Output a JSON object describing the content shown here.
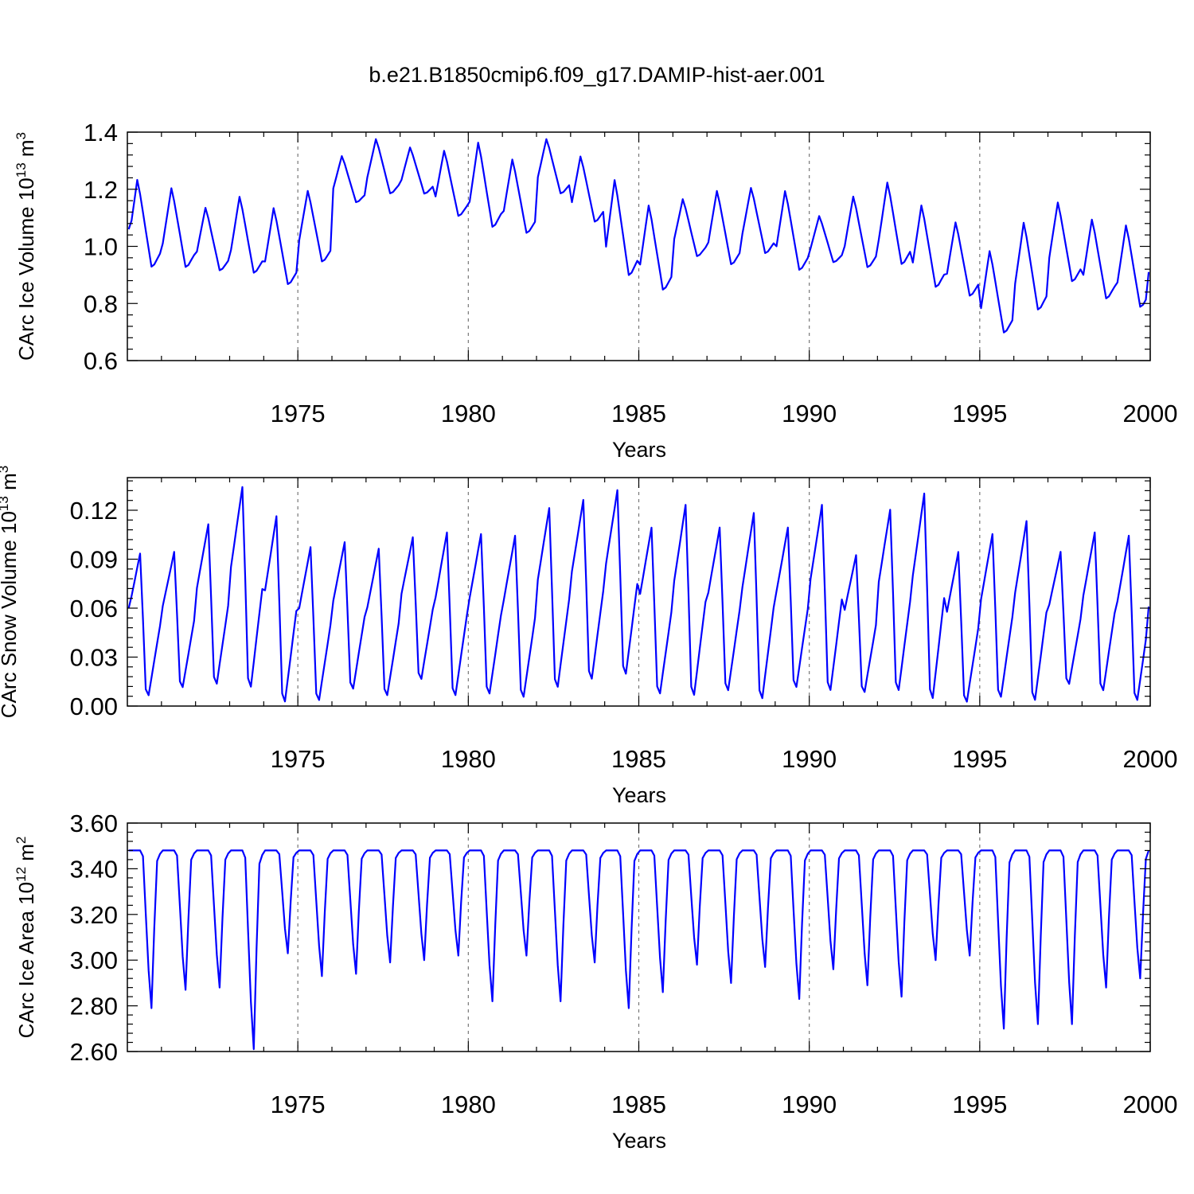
{
  "title": "b.e21.B1850cmip6.f09_g17.DAMIP-hist-aer.001",
  "series_color": "#0000ff",
  "chart_data": [
    {
      "type": "line",
      "id": "ice-volume",
      "ylabel": "CArc Ice Volume 10",
      "ylabel_exp": "13",
      "ylabel_unit": " m",
      "ylabel_unit_exp": "3",
      "xlabel": "Years",
      "xlim": [
        1970,
        2000
      ],
      "ylim": [
        0.6,
        1.4
      ],
      "yticks": [
        0.6,
        0.8,
        1.0,
        1.2,
        1.4
      ],
      "ytick_labels": [
        "0.6",
        "0.8",
        "1.0",
        "1.2",
        "1.4"
      ],
      "xticks": [
        1975,
        1980,
        1985,
        1990,
        1995,
        2000
      ],
      "xtick_labels": [
        "1975",
        "1980",
        "1985",
        "1990",
        "1995",
        "2000"
      ],
      "x_start": 1970.04,
      "x_step": 0.08333,
      "annual_max": [
        1.24,
        1.21,
        1.14,
        1.18,
        1.14,
        1.2,
        1.32,
        1.38,
        1.35,
        1.34,
        1.37,
        1.31,
        1.38,
        1.32,
        1.24,
        1.15,
        1.17,
        1.2,
        1.21,
        1.2,
        1.11,
        1.18,
        1.23,
        1.15,
        1.09,
        0.99,
        1.09,
        1.16,
        1.1,
        1.08
      ],
      "annual_min": [
        0.92,
        0.92,
        0.91,
        0.9,
        0.86,
        0.94,
        1.15,
        1.18,
        1.18,
        1.1,
        1.06,
        1.04,
        1.18,
        1.08,
        0.89,
        0.84,
        0.96,
        0.93,
        0.97,
        0.91,
        0.94,
        0.92,
        0.93,
        0.85,
        0.82,
        0.69,
        0.77,
        0.87,
        0.81,
        0.78
      ],
      "start_value": 1.06,
      "end_value": 0.91
    },
    {
      "type": "line",
      "id": "snow-volume",
      "ylabel": "CArc Snow Volume 10",
      "ylabel_exp": "13",
      "ylabel_unit": " m",
      "ylabel_unit_exp": "3",
      "xlabel": "Years",
      "xlim": [
        1970,
        2000
      ],
      "ylim": [
        0.0,
        0.14
      ],
      "yticks": [
        0.0,
        0.03,
        0.06,
        0.09,
        0.12
      ],
      "ytick_labels": [
        "0.00",
        "0.03",
        "0.06",
        "0.09",
        "0.12"
      ],
      "xticks": [
        1975,
        1980,
        1985,
        1990,
        1995,
        2000
      ],
      "xtick_labels": [
        "1975",
        "1980",
        "1985",
        "1990",
        "1995",
        "2000"
      ],
      "x_start": 1970.04,
      "x_step": 0.08333,
      "annual_max": [
        0.094,
        0.095,
        0.112,
        0.135,
        0.117,
        0.098,
        0.101,
        0.097,
        0.104,
        0.107,
        0.106,
        0.105,
        0.122,
        0.127,
        0.133,
        0.11,
        0.124,
        0.11,
        0.119,
        0.11,
        0.124,
        0.093,
        0.121,
        0.131,
        0.095,
        0.106,
        0.114,
        0.095,
        0.107,
        0.105
      ],
      "annual_min": [
        0.006,
        0.011,
        0.013,
        0.011,
        0.002,
        0.003,
        0.01,
        0.006,
        0.016,
        0.006,
        0.007,
        0.005,
        0.011,
        0.016,
        0.019,
        0.007,
        0.006,
        0.009,
        0.004,
        0.011,
        0.009,
        0.008,
        0.009,
        0.004,
        0.002,
        0.005,
        0.003,
        0.013,
        0.009,
        0.003
      ],
      "start_value": 0.06,
      "end_value": 0.061
    },
    {
      "type": "line",
      "id": "ice-area",
      "ylabel": "CArc Ice Area 10",
      "ylabel_exp": "12",
      "ylabel_unit": " m",
      "ylabel_unit_exp": "2",
      "xlabel": "Years",
      "xlim": [
        1970,
        2000
      ],
      "ylim": [
        2.6,
        3.6
      ],
      "yticks": [
        2.6,
        2.8,
        3.0,
        3.2,
        3.4,
        3.6
      ],
      "ytick_labels": [
        "2.60",
        "2.80",
        "3.00",
        "3.20",
        "3.40",
        "3.60"
      ],
      "xticks": [
        1975,
        1980,
        1985,
        1990,
        1995,
        2000
      ],
      "xtick_labels": [
        "1975",
        "1980",
        "1985",
        "1990",
        "1995",
        "2000"
      ],
      "x_start": 1970.04,
      "x_step": 0.08333,
      "annual_max": [
        3.48,
        3.48,
        3.48,
        3.48,
        3.48,
        3.48,
        3.48,
        3.48,
        3.48,
        3.48,
        3.48,
        3.48,
        3.48,
        3.48,
        3.48,
        3.48,
        3.48,
        3.48,
        3.48,
        3.48,
        3.48,
        3.48,
        3.48,
        3.48,
        3.48,
        3.48,
        3.48,
        3.48,
        3.48,
        3.48
      ],
      "annual_min": [
        2.79,
        2.87,
        2.88,
        2.61,
        3.03,
        2.93,
        2.94,
        2.99,
        3.0,
        3.02,
        2.82,
        3.02,
        2.82,
        2.99,
        2.79,
        2.86,
        2.98,
        2.9,
        2.97,
        2.83,
        2.96,
        2.89,
        2.84,
        3.0,
        3.02,
        2.7,
        2.72,
        2.72,
        2.88,
        2.92
      ],
      "start_value": 3.48,
      "end_value": 3.48
    }
  ]
}
